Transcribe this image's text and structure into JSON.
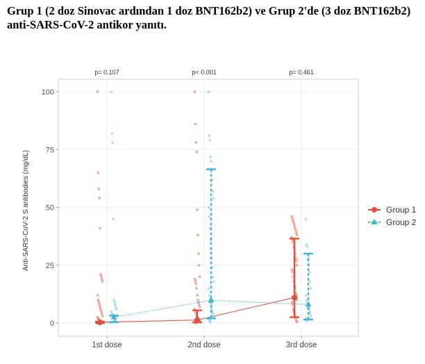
{
  "page": {
    "title": "Grup 1 (2 doz Sinovac ardından 1 doz BNT162b2) ve Grup 2'de (3 doz BNT162b2) anti-SARS-CoV-2 antikor yanıtı."
  },
  "chart_data": {
    "type": "scatter",
    "ylabel": "Anti-SARS-CoV-2 S antibodies (mg/dL)",
    "xlabel": "",
    "categories": [
      "1st dose",
      "2nd dose",
      "3rd dose"
    ],
    "ylim": [
      0,
      100
    ],
    "yticks": [
      0,
      25,
      50,
      75,
      100
    ],
    "grid": true,
    "legend_position": "right",
    "p_values": [
      "p= 0.107",
      "p< 0.001",
      "p= 0.461"
    ],
    "series": [
      {
        "name": "Group 1",
        "color": "#e0503c",
        "marker": "circle",
        "medians": [
          0.3,
          1.3,
          11
        ],
        "iqr_low": [
          0,
          0.3,
          2.5
        ],
        "iqr_high": [
          0.6,
          5.5,
          36.5
        ],
        "points": [
          [
            100,
            65,
            58,
            54,
            41,
            21,
            20,
            19,
            18,
            12,
            10,
            9,
            8,
            7,
            6,
            5,
            4,
            3,
            2.5,
            2,
            1.5,
            1,
            0.8,
            0.5,
            0.3,
            0.2,
            0.1,
            0,
            0,
            0
          ],
          [
            100,
            86,
            78,
            74,
            49,
            38,
            30,
            25,
            20,
            19,
            18,
            17,
            15,
            12,
            10,
            9,
            8,
            7,
            6,
            5,
            4,
            3,
            2.5,
            2,
            1.5,
            1,
            0.8,
            0.5,
            0.2,
            0
          ],
          [
            46,
            45,
            44,
            43,
            42,
            41,
            40,
            39,
            38,
            37,
            36,
            35,
            33,
            32,
            30,
            28,
            27,
            25,
            23,
            22,
            20,
            18,
            16,
            15,
            13,
            12,
            10,
            9,
            8,
            6,
            5,
            4,
            3,
            2,
            1,
            0.5
          ]
        ]
      },
      {
        "name": "Group 2",
        "color": "#3fb5d4",
        "marker": "triangle",
        "medians": [
          2.5,
          9.8,
          8
        ],
        "iqr_low": [
          0.4,
          2,
          1.5
        ],
        "iqr_high": [
          3.2,
          66.5,
          30
        ],
        "points": [
          [
            100,
            82,
            78,
            45,
            10,
            9,
            8,
            7,
            6,
            5,
            4,
            3.5,
            3,
            2.5,
            2,
            1.5,
            1,
            0.5,
            0.3
          ],
          [
            100,
            81,
            79,
            72,
            70,
            66,
            62,
            57,
            54,
            50,
            46,
            41,
            36,
            32,
            28,
            24,
            20,
            18,
            15,
            12,
            10,
            9,
            8,
            6,
            5,
            4,
            3,
            2,
            1.5,
            1,
            0.5
          ],
          [
            45,
            34,
            33,
            30,
            28,
            25,
            22,
            18,
            15,
            12,
            10,
            9,
            8,
            7,
            6,
            5,
            4,
            3,
            2,
            1.5,
            1
          ]
        ]
      }
    ]
  }
}
